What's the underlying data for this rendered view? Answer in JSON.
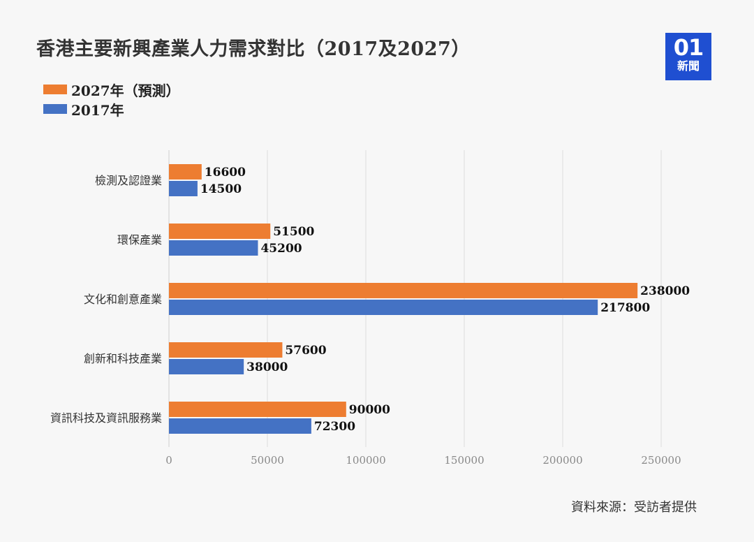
{
  "title": "香港主要新興產業人力需求對比（2017及2027）",
  "logo": {
    "mark": "01",
    "word": "新聞"
  },
  "source": "資料來源：受訪者提供",
  "chart_data": {
    "type": "bar",
    "orientation": "horizontal",
    "categories": [
      "檢測及認證業",
      "環保產業",
      "文化和創意產業",
      "創新和科技產業",
      "資訊科技及資訊服務業"
    ],
    "series": [
      {
        "name": "2027年（預測）",
        "color": "#ed7d31",
        "values": [
          16600,
          51500,
          238000,
          57600,
          90000
        ]
      },
      {
        "name": "2017年",
        "color": "#4472c4",
        "values": [
          14500,
          45200,
          217800,
          38000,
          72300
        ]
      }
    ],
    "xlim": [
      0,
      250000
    ],
    "xticks": [
      0,
      50000,
      100000,
      150000,
      200000,
      250000
    ],
    "xtick_labels": [
      "0",
      "50000",
      "100000",
      "150000",
      "200000",
      "250000"
    ],
    "grid": true,
    "legend_position": "top-left"
  }
}
